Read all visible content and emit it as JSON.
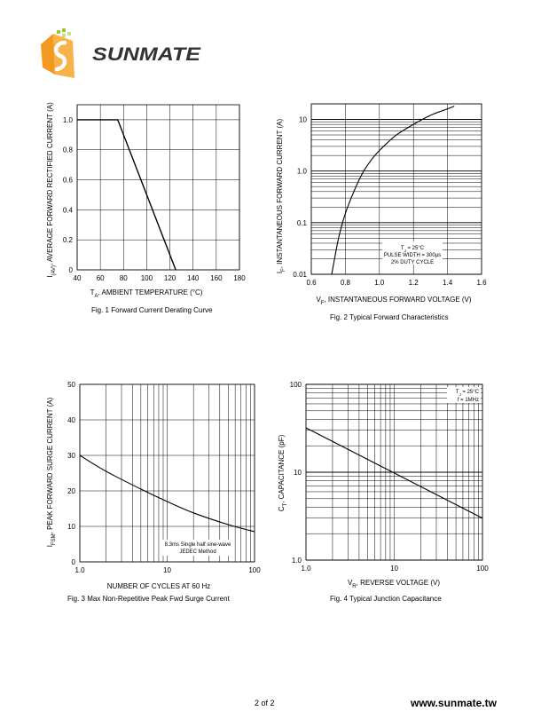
{
  "brand": {
    "logo_text": "SUNMATE",
    "colors": {
      "logo_orange": "#f39a1e",
      "logo_green": "#9bc63a",
      "logo_dark": "#333333"
    }
  },
  "footer": {
    "page": "2 of 2",
    "website": "www.sunmate.tw"
  },
  "chart_data": [
    {
      "id": "fig1",
      "type": "line",
      "caption": "Fig. 1 Forward Current Derating Curve",
      "ylabel_main": "I",
      "ylabel_sub": "(AV)",
      "ylabel_rest": ", AVERAGE FORWARD RECTIFIED CURRENT (A)",
      "xlabel_main": "T",
      "xlabel_sub": "A",
      "xlabel_rest": ", AMBIENT TEMPERATURE (°C)",
      "xlim": [
        40,
        180
      ],
      "ylim": [
        0,
        1.1
      ],
      "xticks": [
        40,
        60,
        80,
        100,
        120,
        140,
        160,
        180
      ],
      "yticks": [
        0,
        0.2,
        0.4,
        0.6,
        0.8,
        1.0
      ],
      "xtick_labels": [
        "40",
        "60",
        "80",
        "100",
        "120",
        "140",
        "160",
        "180"
      ],
      "ytick_labels": [
        "0",
        "0.2",
        "0.4",
        "0.6",
        "0.8",
        "1.0"
      ],
      "grid": true,
      "series": [
        {
          "x": [
            40,
            75,
            125
          ],
          "y": [
            1.0,
            1.0,
            0
          ]
        }
      ]
    },
    {
      "id": "fig2",
      "type": "line",
      "caption": "Fig. 2 Typical Forward Characteristics",
      "ylabel_main": "I",
      "ylabel_sub": "F",
      "ylabel_rest": ", INSTANTANEOUS FORWARD CURRENT (A)",
      "xlabel_main": "V",
      "xlabel_sub": "F",
      "xlabel_rest": ", INSTANTANEOUS FORWARD VOLTAGE (V)",
      "xlim": [
        0.6,
        1.6
      ],
      "ylim": [
        0.01,
        20
      ],
      "yscale": "log",
      "xticks": [
        0.6,
        0.8,
        1.0,
        1.2,
        1.4,
        1.6
      ],
      "yticks": [
        0.01,
        0.1,
        1.0,
        10
      ],
      "xtick_labels": [
        "0.6",
        "0.8",
        "1.0",
        "1.2",
        "1.4",
        "1.6"
      ],
      "ytick_labels": [
        "0.01",
        "0.1",
        "1.0",
        "10"
      ],
      "grid": true,
      "annotation": [
        "T",
        "J",
        " = 25°C",
        "PULSE WIDTH = 300μs",
        "2% DUTY CYCLE"
      ],
      "series": [
        {
          "x": [
            0.72,
            0.76,
            0.8,
            0.85,
            0.9,
            0.95,
            1.0,
            1.05,
            1.1,
            1.2,
            1.3,
            1.4,
            1.44
          ],
          "y": [
            0.01,
            0.05,
            0.15,
            0.4,
            0.9,
            1.6,
            2.5,
            3.6,
            5.0,
            8.0,
            12,
            16,
            18
          ]
        }
      ]
    },
    {
      "id": "fig3",
      "type": "line",
      "caption": "Fig. 3  Max Non-Repetitive Peak Fwd Surge Current",
      "ylabel_main": "I",
      "ylabel_sub": "FSM",
      "ylabel_rest": ", PEAK FORWARD SURGE CURRENT (A)",
      "xlabel": "NUMBER OF CYCLES AT 60 Hz",
      "xlim": [
        1,
        100
      ],
      "ylim": [
        0,
        50
      ],
      "xscale": "log",
      "xticks": [
        1,
        10,
        100
      ],
      "yticks": [
        0,
        10,
        20,
        30,
        40,
        50
      ],
      "xtick_labels": [
        "1.0",
        "10",
        "100"
      ],
      "ytick_labels": [
        "0",
        "10",
        "20",
        "30",
        "40",
        "50"
      ],
      "grid": true,
      "annotation": [
        "8.3ms Single half sine-wave",
        "JEDEC Method"
      ],
      "series": [
        {
          "x": [
            1,
            2,
            5,
            10,
            20,
            50,
            100
          ],
          "y": [
            30,
            25.5,
            20.5,
            17,
            13.8,
            10.5,
            8.5
          ]
        }
      ]
    },
    {
      "id": "fig4",
      "type": "line",
      "caption": "Fig. 4 Typical Junction Capacitance",
      "ylabel_main": "C",
      "ylabel_sub": "T",
      "ylabel_rest": ", CAPACITANCE (pF)",
      "xlabel_main": "V",
      "xlabel_sub": "R",
      "xlabel_rest": ", REVERSE VOLTAGE (V)",
      "xlim": [
        1,
        100
      ],
      "ylim": [
        1,
        100
      ],
      "xscale": "log",
      "yscale": "log",
      "xticks": [
        1,
        10,
        100
      ],
      "yticks": [
        1,
        10,
        100
      ],
      "xtick_labels": [
        "1.0",
        "10",
        "100"
      ],
      "ytick_labels": [
        "1.0",
        "10",
        "100"
      ],
      "grid": true,
      "annotation": [
        "T",
        "J",
        " = 25°C",
        "f = 1MHz"
      ],
      "series": [
        {
          "x": [
            1,
            100
          ],
          "y": [
            32,
            3
          ]
        }
      ]
    }
  ]
}
